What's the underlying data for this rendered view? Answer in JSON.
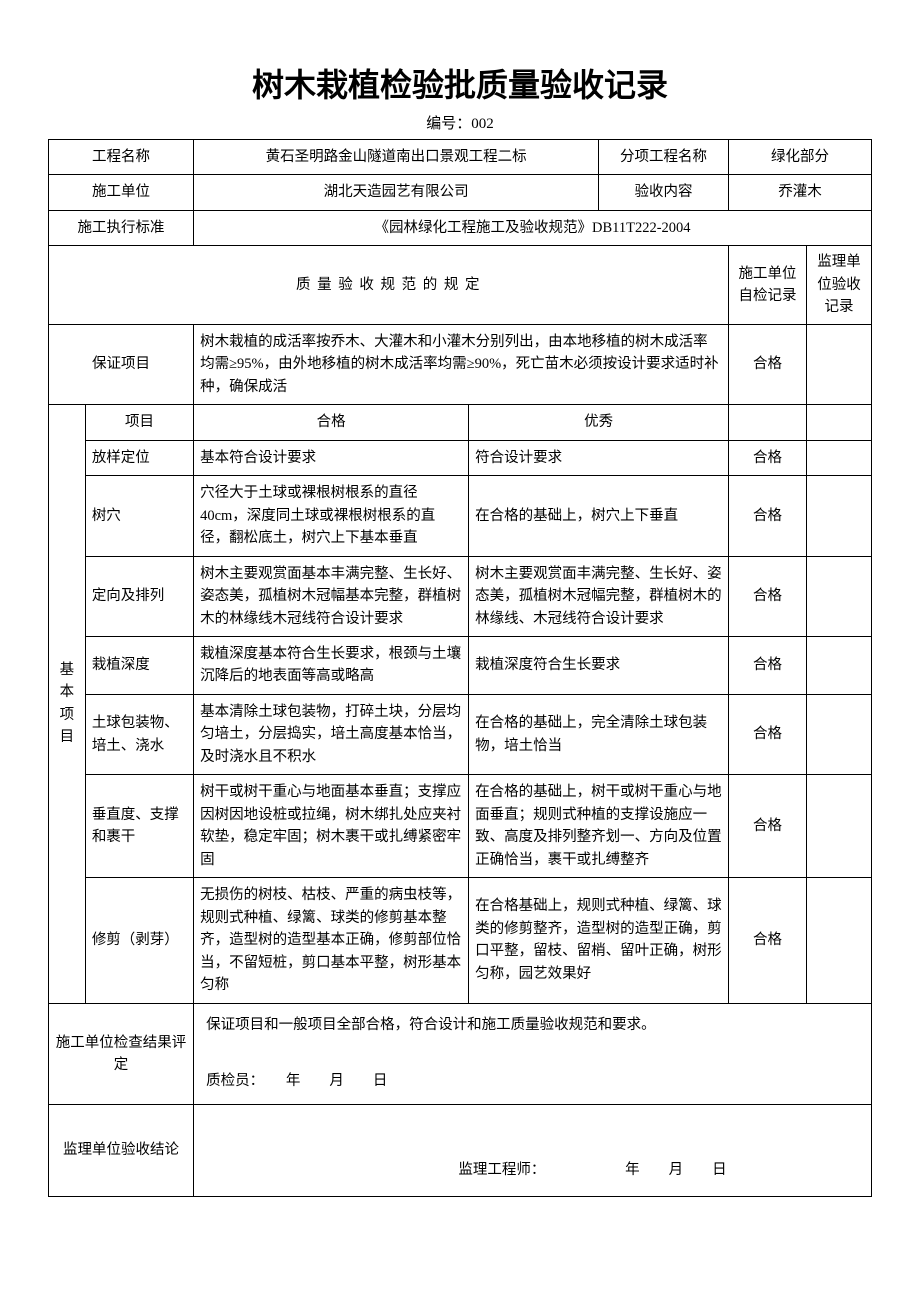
{
  "title": "树木栽植检验批质量验收记录",
  "docNo": "编号：002",
  "header": {
    "projectNameLabel": "工程名称",
    "projectName": "黄石圣明路金山隧道南出口景观工程二标",
    "subProjectLabel": "分项工程名称",
    "subProject": "绿化部分",
    "contractorLabel": "施工单位",
    "contractor": "湖北天造园艺有限公司",
    "checkContentLabel": "验收内容",
    "checkContent": "乔灌木",
    "standardLabel": "施工执行标准",
    "standard": "《园林绿化工程施工及验收规范》DB11T222-2004"
  },
  "specTitle": "质 量 验 收 规 范 的 规 定",
  "recordCols": {
    "contractor": "施工单位自检记录",
    "supervisor": "监理单位验收记录"
  },
  "guarantee": {
    "label": "保证项目",
    "text": "树木栽植的成活率按乔木、大灌木和小灌木分别列出，由本地移植的树木成活率均需≥95%，由外地移植的树木成活率均需≥90%，死亡苗木必须按设计要求适时补种，确保成活",
    "status": "合格"
  },
  "basic": {
    "groupLabel": "基本项目",
    "head": {
      "item": "项目",
      "pass": "合格",
      "excellent": "优秀"
    },
    "rows": [
      {
        "item": "放样定位",
        "pass": "基本符合设计要求",
        "excellent": "符合设计要求",
        "status": "合格"
      },
      {
        "item": "树穴",
        "pass": "穴径大于土球或裸根树根系的直径40cm，深度同土球或裸根树根系的直径，翻松底土，树穴上下基本垂直",
        "excellent": "在合格的基础上，树穴上下垂直",
        "status": "合格"
      },
      {
        "item": "定向及排列",
        "pass": "树木主要观赏面基本丰满完整、生长好、姿态美，孤植树木冠幅基本完整，群植树木的林缘线木冠线符合设计要求",
        "excellent": "树木主要观赏面丰满完整、生长好、姿态美，孤植树木冠幅完整，群植树木的林缘线、木冠线符合设计要求",
        "status": "合格"
      },
      {
        "item": "栽植深度",
        "pass": "栽植深度基本符合生长要求，根颈与土壤沉降后的地表面等高或略高",
        "excellent": "栽植深度符合生长要求",
        "status": "合格"
      },
      {
        "item": "土球包装物、培土、浇水",
        "pass": "基本清除土球包装物，打碎土块，分层均匀培土，分层捣实，培土高度基本恰当，及时浇水且不积水",
        "excellent": "在合格的基础上，完全清除土球包装物，培土恰当",
        "status": "合格"
      },
      {
        "item": "垂直度、支撑和裹干",
        "pass": "树干或树干重心与地面基本垂直；支撑应因树因地设桩或拉绳，树木绑扎处应夹衬软垫，稳定牢固；树木裹干或扎缚紧密牢固",
        "excellent": "在合格的基础上，树干或树干重心与地面垂直；规则式种植的支撑设施应一致、高度及排列整齐划一、方向及位置正确恰当，裹干或扎缚整齐",
        "status": "合格"
      },
      {
        "item": "修剪（剥芽）",
        "pass": "无损伤的树枝、枯枝、严重的病虫枝等，规则式种植、绿篱、球类的修剪基本整齐，造型树的造型基本正确，修剪部位恰当，不留短桩，剪口基本平整，树形基本匀称",
        "excellent": "在合格基础上，规则式种植、绿篱、球类的修剪整齐，造型树的造型正确，剪口平整，留枝、留梢、留叶正确，树形匀称，园艺效果好",
        "status": "合格"
      }
    ]
  },
  "contractorCheck": {
    "label": "施工单位检查结果评定",
    "text": "保证项目和一般项目全部合格，符合设计和施工质量验收规范和要求。",
    "sign": "质检员：　　年　　月　　日"
  },
  "supervisorCheck": {
    "label": "监理单位验收结论",
    "sign": "监理工程师：　　　　　　年　　月　　日"
  }
}
